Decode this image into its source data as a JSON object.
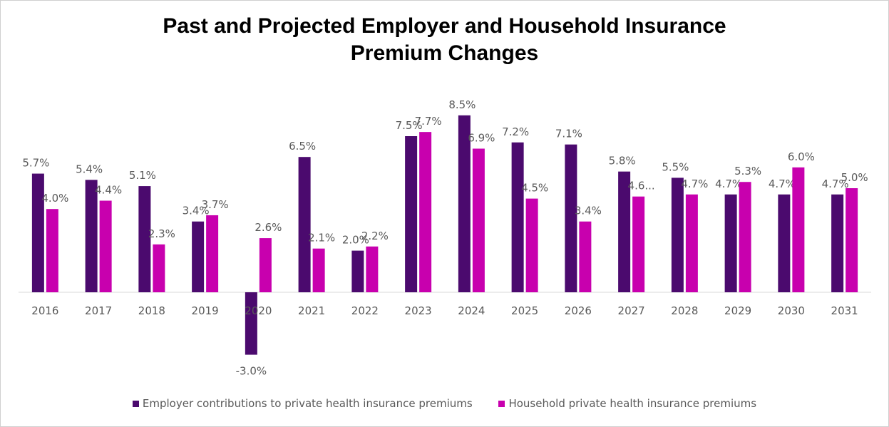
{
  "chart_data": {
    "type": "bar",
    "title": [
      "Past and Projected Employer and Household Insurance",
      "Premium Changes"
    ],
    "categories": [
      "2016",
      "2017",
      "2018",
      "2019",
      "2020",
      "2021",
      "2022",
      "2023",
      "2024",
      "2025",
      "2026",
      "2027",
      "2028",
      "2029",
      "2030",
      "2031"
    ],
    "series": [
      {
        "name": "Employer contributions to private health insurance premiums",
        "color": "#4B0A6E",
        "values": [
          5.7,
          5.4,
          5.1,
          3.4,
          -3.0,
          6.5,
          2.0,
          7.5,
          8.5,
          7.2,
          7.1,
          5.8,
          5.5,
          4.7,
          4.7,
          4.7
        ],
        "labels": [
          "5.7%",
          "5.4%",
          "5.1%",
          "3.4%",
          "-3.0%",
          "6.5%",
          "2.0%",
          "7.5%",
          "8.5%",
          "7.2%",
          "7.1%",
          "5.8%",
          "5.5%",
          "4.7%",
          "4.7%",
          "4.7%"
        ]
      },
      {
        "name": "Household private health insurance premiums",
        "color": "#C800AE",
        "values": [
          4.0,
          4.4,
          2.3,
          3.7,
          2.6,
          2.1,
          2.2,
          7.7,
          6.9,
          4.5,
          3.4,
          4.6,
          4.7,
          5.3,
          6.0,
          5.0
        ],
        "labels": [
          "4.0%",
          "4.4%",
          "2.3%",
          "3.7%",
          "2.6%",
          "2.1%",
          "2.2%",
          "7.7%",
          "6.9%",
          "4.5%",
          "3.4%",
          "4.6...",
          "4.7%",
          "5.3%",
          "6.0%",
          "5.0%"
        ]
      }
    ],
    "ylim": [
      -3.5,
      9.5
    ],
    "grid": false,
    "legend_position": "bottom",
    "xlabel": "",
    "ylabel": ""
  }
}
